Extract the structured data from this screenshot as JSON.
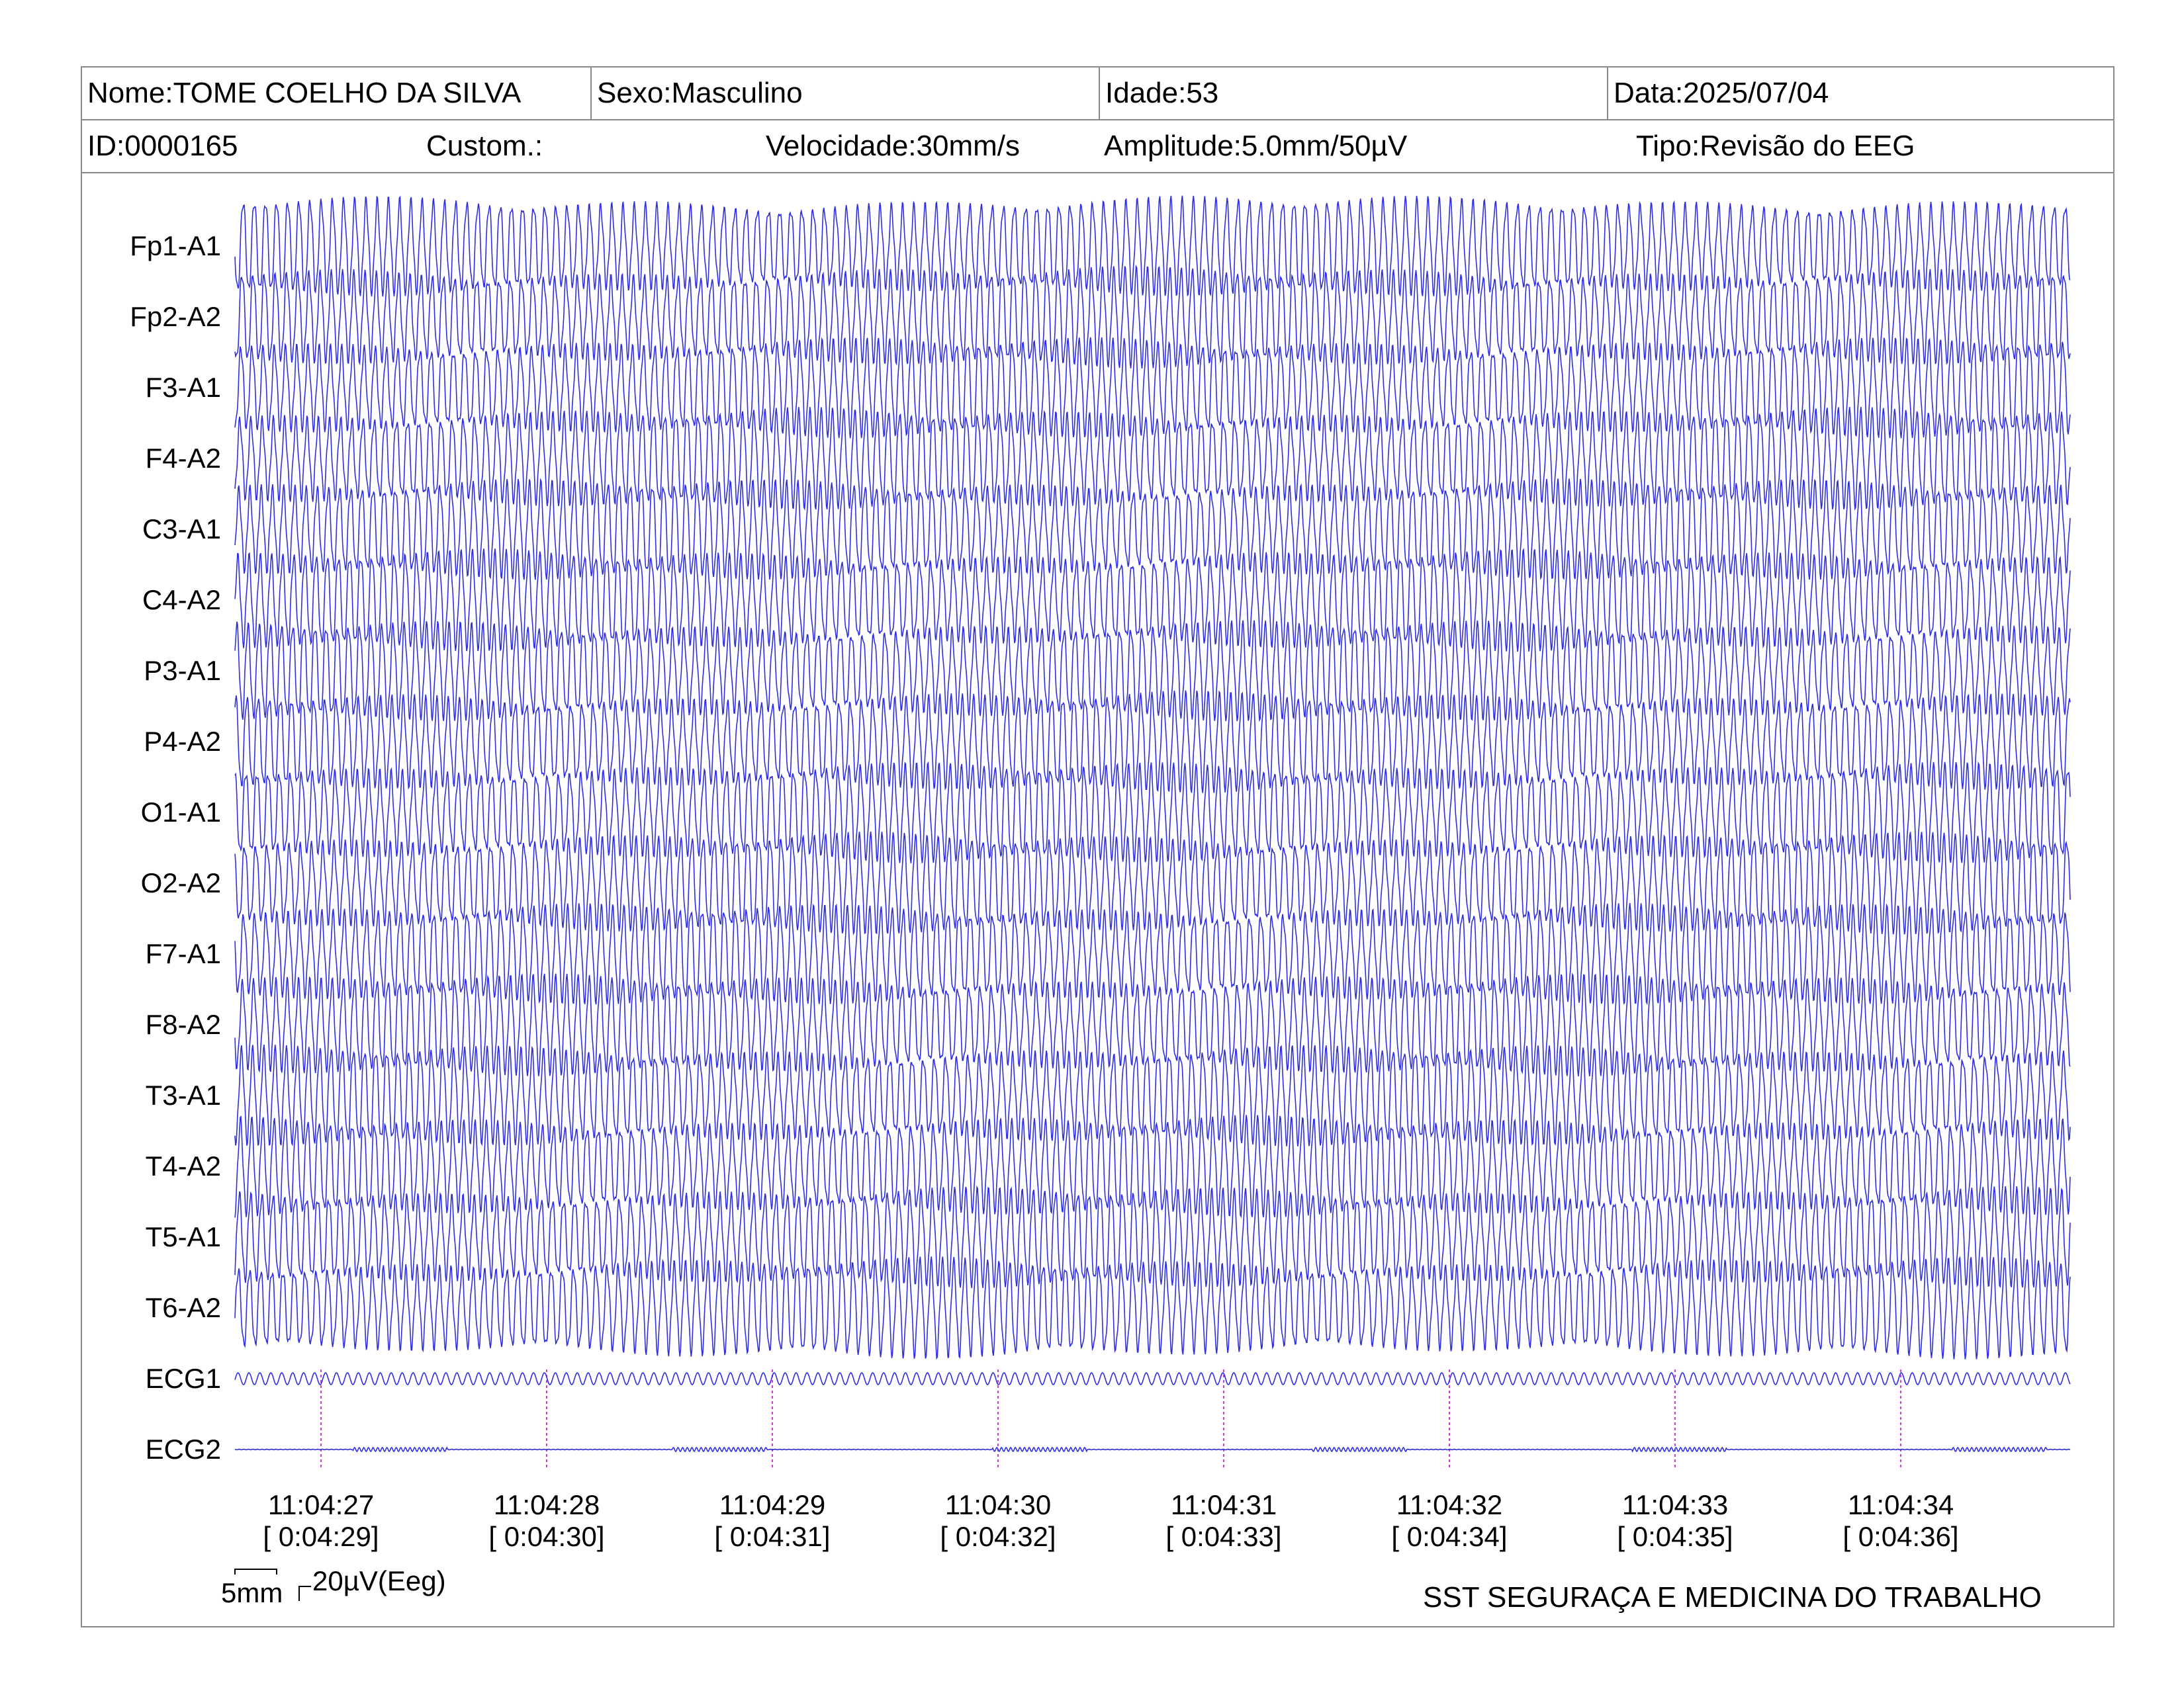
{
  "header": {
    "nome": "Nome:TOME COELHO DA SILVA",
    "sexo": "Sexo:Masculino",
    "idade": "Idade:53",
    "data": "Data:2025/07/04",
    "id": "ID:0000165",
    "custom": "Custom.:",
    "velocidade": "Velocidade:30mm/s",
    "amplitude": "Amplitude:5.0mm/50µV",
    "tipo": "Tipo:Revisão do EEG"
  },
  "channels": [
    "Fp1-A1",
    "Fp2-A2",
    "F3-A1",
    "F4-A2",
    "C3-A1",
    "C4-A2",
    "P3-A1",
    "P4-A2",
    "O1-A1",
    "O2-A2",
    "F7-A1",
    "F8-A2",
    "T3-A1",
    "T4-A2",
    "T5-A1",
    "T6-A2",
    "ECG1",
    "ECG2"
  ],
  "time_marks": [
    {
      "clock": "11:04:27",
      "elapsed": "[ 0:04:29]"
    },
    {
      "clock": "11:04:28",
      "elapsed": "[ 0:04:30]"
    },
    {
      "clock": "11:04:29",
      "elapsed": "[ 0:04:31]"
    },
    {
      "clock": "11:04:30",
      "elapsed": "[ 0:04:32]"
    },
    {
      "clock": "11:04:31",
      "elapsed": "[ 0:04:33]"
    },
    {
      "clock": "11:04:32",
      "elapsed": "[ 0:04:34]"
    },
    {
      "clock": "11:04:33",
      "elapsed": "[ 0:04:35]"
    },
    {
      "clock": "11:04:34",
      "elapsed": "[ 0:04:36]"
    }
  ],
  "scale": {
    "time": "5mm",
    "amplitude": "20µV(Eeg)"
  },
  "footer": {
    "company": "SST SEGURAÇA E MEDICINA DO TRABALHO"
  },
  "colors": {
    "trace": "#2f2fe0",
    "marker": "#d040d0",
    "border": "#8a8a8a"
  }
}
